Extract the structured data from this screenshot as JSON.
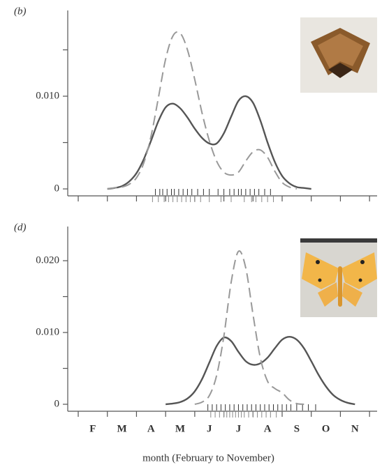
{
  "chart_data": [
    {
      "type": "line",
      "panel": "(b)",
      "xlim": [
        1.14,
        11.76
      ],
      "xticks": [
        1.5,
        2.5,
        3.5,
        4.5,
        5.5,
        6.5,
        7.5,
        8.5,
        9.5,
        10.5,
        11.5
      ],
      "ylim": [
        -0.00075,
        0.01925
      ],
      "yticks": [
        0,
        {
          "value": 0.01,
          "label": "0.010"
        }
      ],
      "yminor": [
        0.005,
        0.015
      ],
      "series": [
        {
          "color": "#555555",
          "style": "solid",
          "x": [
            2.5,
            2.75,
            3.0,
            3.25,
            3.5,
            3.75,
            4.0,
            4.25,
            4.5,
            4.75,
            5.0,
            5.25,
            5.5,
            5.75,
            6.0,
            6.25,
            6.5,
            6.75,
            7.0,
            7.25,
            7.5,
            7.75,
            8.0,
            8.25,
            8.5,
            8.75,
            9.0,
            9.25,
            9.5
          ],
          "values": [
            0,
            0.0001,
            0.0003,
            0.0008,
            0.0017,
            0.0032,
            0.0052,
            0.0073,
            0.0088,
            0.0092,
            0.0087,
            0.0077,
            0.0065,
            0.0055,
            0.0049,
            0.0049,
            0.006,
            0.0078,
            0.0095,
            0.01,
            0.0093,
            0.0074,
            0.005,
            0.0029,
            0.0014,
            0.0006,
            0.0002,
            0.0001,
            0
          ],
          "rug": [
            4.15,
            4.3,
            4.4,
            4.55,
            4.7,
            4.8,
            4.95,
            5.1,
            5.25,
            5.4,
            5.6,
            5.8,
            6.0,
            6.3,
            6.5,
            6.7,
            6.85,
            7.0,
            7.1,
            7.25,
            7.4,
            7.55,
            7.7,
            7.9,
            8.1
          ]
        },
        {
          "color": "#999999",
          "style": "dashed",
          "x": [
            2.5,
            2.75,
            3.0,
            3.25,
            3.5,
            3.75,
            4.0,
            4.25,
            4.5,
            4.75,
            5.0,
            5.25,
            5.5,
            5.75,
            6.0,
            6.25,
            6.5,
            6.75,
            7.0,
            7.25,
            7.5,
            7.75,
            8.0,
            8.25,
            8.5,
            8.75,
            9.0
          ],
          "values": [
            0,
            0.0001,
            0.0002,
            0.0005,
            0.0012,
            0.0028,
            0.0057,
            0.0098,
            0.014,
            0.0165,
            0.0168,
            0.015,
            0.0118,
            0.0082,
            0.0052,
            0.003,
            0.0018,
            0.0015,
            0.0018,
            0.003,
            0.004,
            0.0042,
            0.0034,
            0.0019,
            0.0007,
            0.0002,
            0
          ],
          "rug": [
            4.05,
            4.25,
            4.45,
            4.6,
            4.75,
            4.9,
            5.05,
            5.2,
            5.35,
            5.5,
            5.7,
            6.0,
            6.4,
            6.75,
            7.2,
            7.45,
            7.6,
            7.8,
            8.0,
            8.2
          ]
        }
      ]
    },
    {
      "type": "line",
      "panel": "(d)",
      "xlim": [
        1.14,
        11.76
      ],
      "xticks": [
        1.5,
        2.5,
        3.5,
        4.5,
        5.5,
        6.5,
        7.5,
        8.5,
        9.5,
        10.5,
        11.5
      ],
      "categories": [
        "F",
        "M",
        "A",
        "M",
        "J",
        "J",
        "A",
        "S",
        "O",
        "N"
      ],
      "category_x": [
        2,
        3,
        4,
        5,
        6,
        7,
        8,
        9,
        10,
        11
      ],
      "xlabel": "month (February to November)",
      "ylim": [
        -0.00097,
        0.02476
      ],
      "yticks": [
        0,
        {
          "value": 0.01,
          "label": "0.010"
        },
        {
          "value": 0.02,
          "label": "0.020"
        }
      ],
      "yminor": [
        0.005,
        0.015
      ],
      "series": [
        {
          "color": "#555555",
          "style": "solid",
          "x": [
            4.5,
            4.75,
            5.0,
            5.25,
            5.5,
            5.75,
            6.0,
            6.25,
            6.5,
            6.75,
            7.0,
            7.25,
            7.5,
            7.75,
            8.0,
            8.25,
            8.5,
            8.75,
            9.0,
            9.25,
            9.5,
            9.75,
            10.0,
            10.25,
            10.5,
            10.75,
            11.0
          ],
          "values": [
            0,
            0.0001,
            0.0003,
            0.0008,
            0.0018,
            0.0035,
            0.0058,
            0.0081,
            0.0093,
            0.0088,
            0.0073,
            0.006,
            0.0055,
            0.0057,
            0.0065,
            0.0078,
            0.009,
            0.0094,
            0.009,
            0.0078,
            0.006,
            0.0041,
            0.0025,
            0.0013,
            0.0006,
            0.0002,
            0
          ],
          "rug": [
            5.95,
            6.1,
            6.25,
            6.4,
            6.55,
            6.7,
            6.85,
            7.0,
            7.15,
            7.3,
            7.45,
            7.6,
            7.75,
            7.9,
            8.05,
            8.2,
            8.35,
            8.5,
            8.65,
            8.8,
            9.0,
            9.2,
            9.4,
            9.65
          ]
        },
        {
          "color": "#999999",
          "style": "dashed",
          "x": [
            5.5,
            5.75,
            6.0,
            6.25,
            6.5,
            6.75,
            7.0,
            7.25,
            7.5,
            7.75,
            8.0,
            8.25,
            8.5,
            8.75,
            9.0,
            9.25
          ],
          "values": [
            0,
            0.0003,
            0.0012,
            0.004,
            0.0095,
            0.017,
            0.0213,
            0.019,
            0.0125,
            0.0065,
            0.0032,
            0.0022,
            0.0016,
            0.0006,
            0.0001,
            0
          ],
          "rug": [
            6.05,
            6.2,
            6.35,
            6.5,
            6.6,
            6.7,
            6.8,
            6.9,
            7.0,
            7.1,
            7.2,
            7.35,
            7.5,
            7.65,
            7.8,
            7.95,
            8.1,
            8.3
          ]
        }
      ]
    }
  ]
}
